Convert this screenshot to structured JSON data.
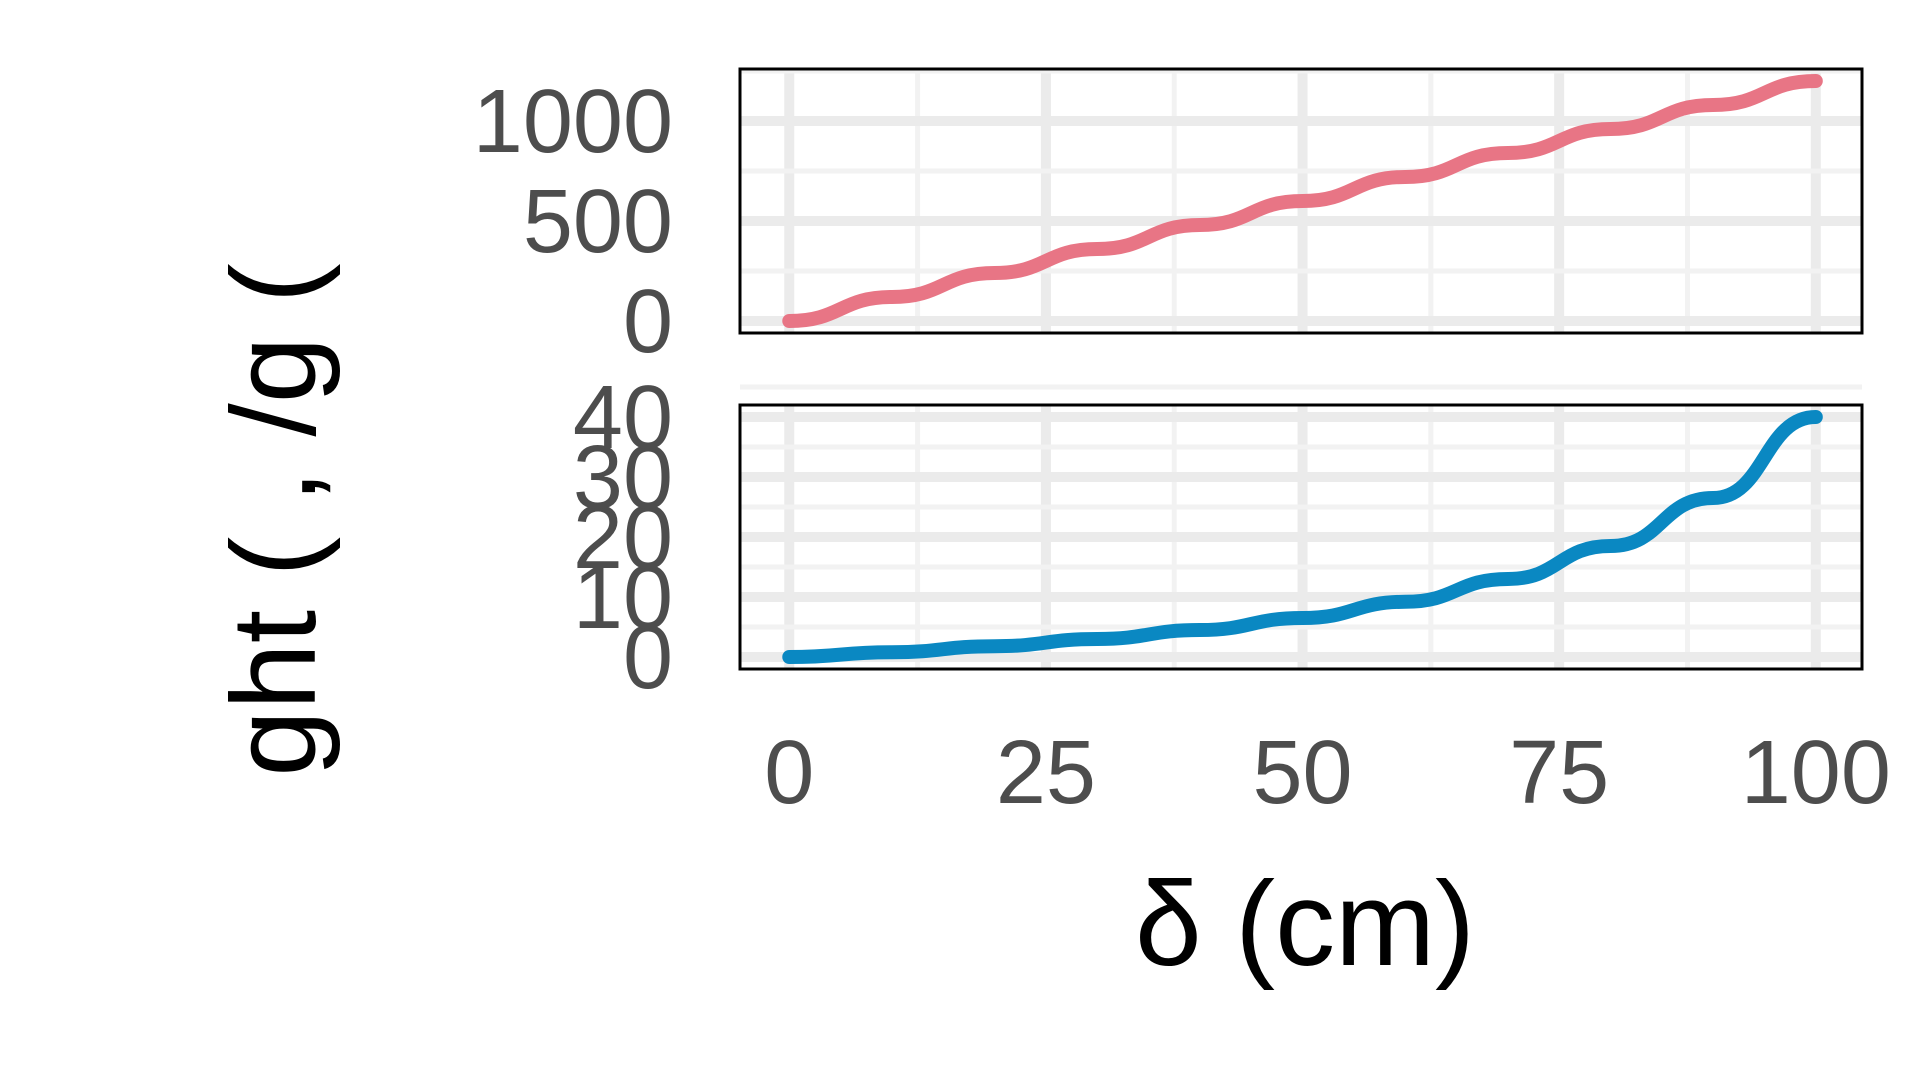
{
  "chart_data": [
    {
      "type": "line",
      "panel": "top",
      "x": [
        0,
        10,
        20,
        30,
        40,
        50,
        60,
        70,
        80,
        90,
        100
      ],
      "series": [
        {
          "color": "#E87585",
          "values": [
            0,
            120,
            240,
            360,
            480,
            600,
            720,
            840,
            960,
            1080,
            1200
          ]
        }
      ],
      "xlim": [
        -4.8,
        104.5
      ],
      "ylim": [
        -60,
        1260
      ],
      "yticks": [
        0,
        500,
        1000
      ],
      "ytick_labels": [
        "0",
        "500",
        "1000"
      ],
      "grid": true
    },
    {
      "type": "line",
      "panel": "bottom",
      "x": [
        0,
        10,
        20,
        30,
        40,
        50,
        60,
        70,
        80,
        90,
        100
      ],
      "series": [
        {
          "color": "#0A88C2",
          "values": [
            0,
            0.8,
            1.8,
            3.0,
            4.5,
            6.5,
            9.2,
            13.0,
            18.5,
            26.5,
            40.0
          ]
        }
      ],
      "xlim": [
        -4.8,
        104.5
      ],
      "ylim": [
        -2,
        42
      ],
      "yticks": [
        0,
        10,
        20,
        30,
        40
      ],
      "ytick_labels": [
        "0",
        "10",
        "20",
        "30",
        "40"
      ],
      "grid": true
    }
  ],
  "shared_x_axis": {
    "ticks": [
      0,
      25,
      50,
      75,
      100
    ],
    "tick_labels": [
      "0",
      "25",
      "50",
      "75",
      "100"
    ],
    "label": "δ (cm)"
  },
  "y_axis_label_visible": "ght ( , /g (",
  "theme": {
    "panel_border": "#000000",
    "grid_major": "#ebebeb",
    "grid_minor": "#f2f2f2",
    "tick_text": "#4d4d4d",
    "title_text": "#000000",
    "background": "#ffffff"
  }
}
